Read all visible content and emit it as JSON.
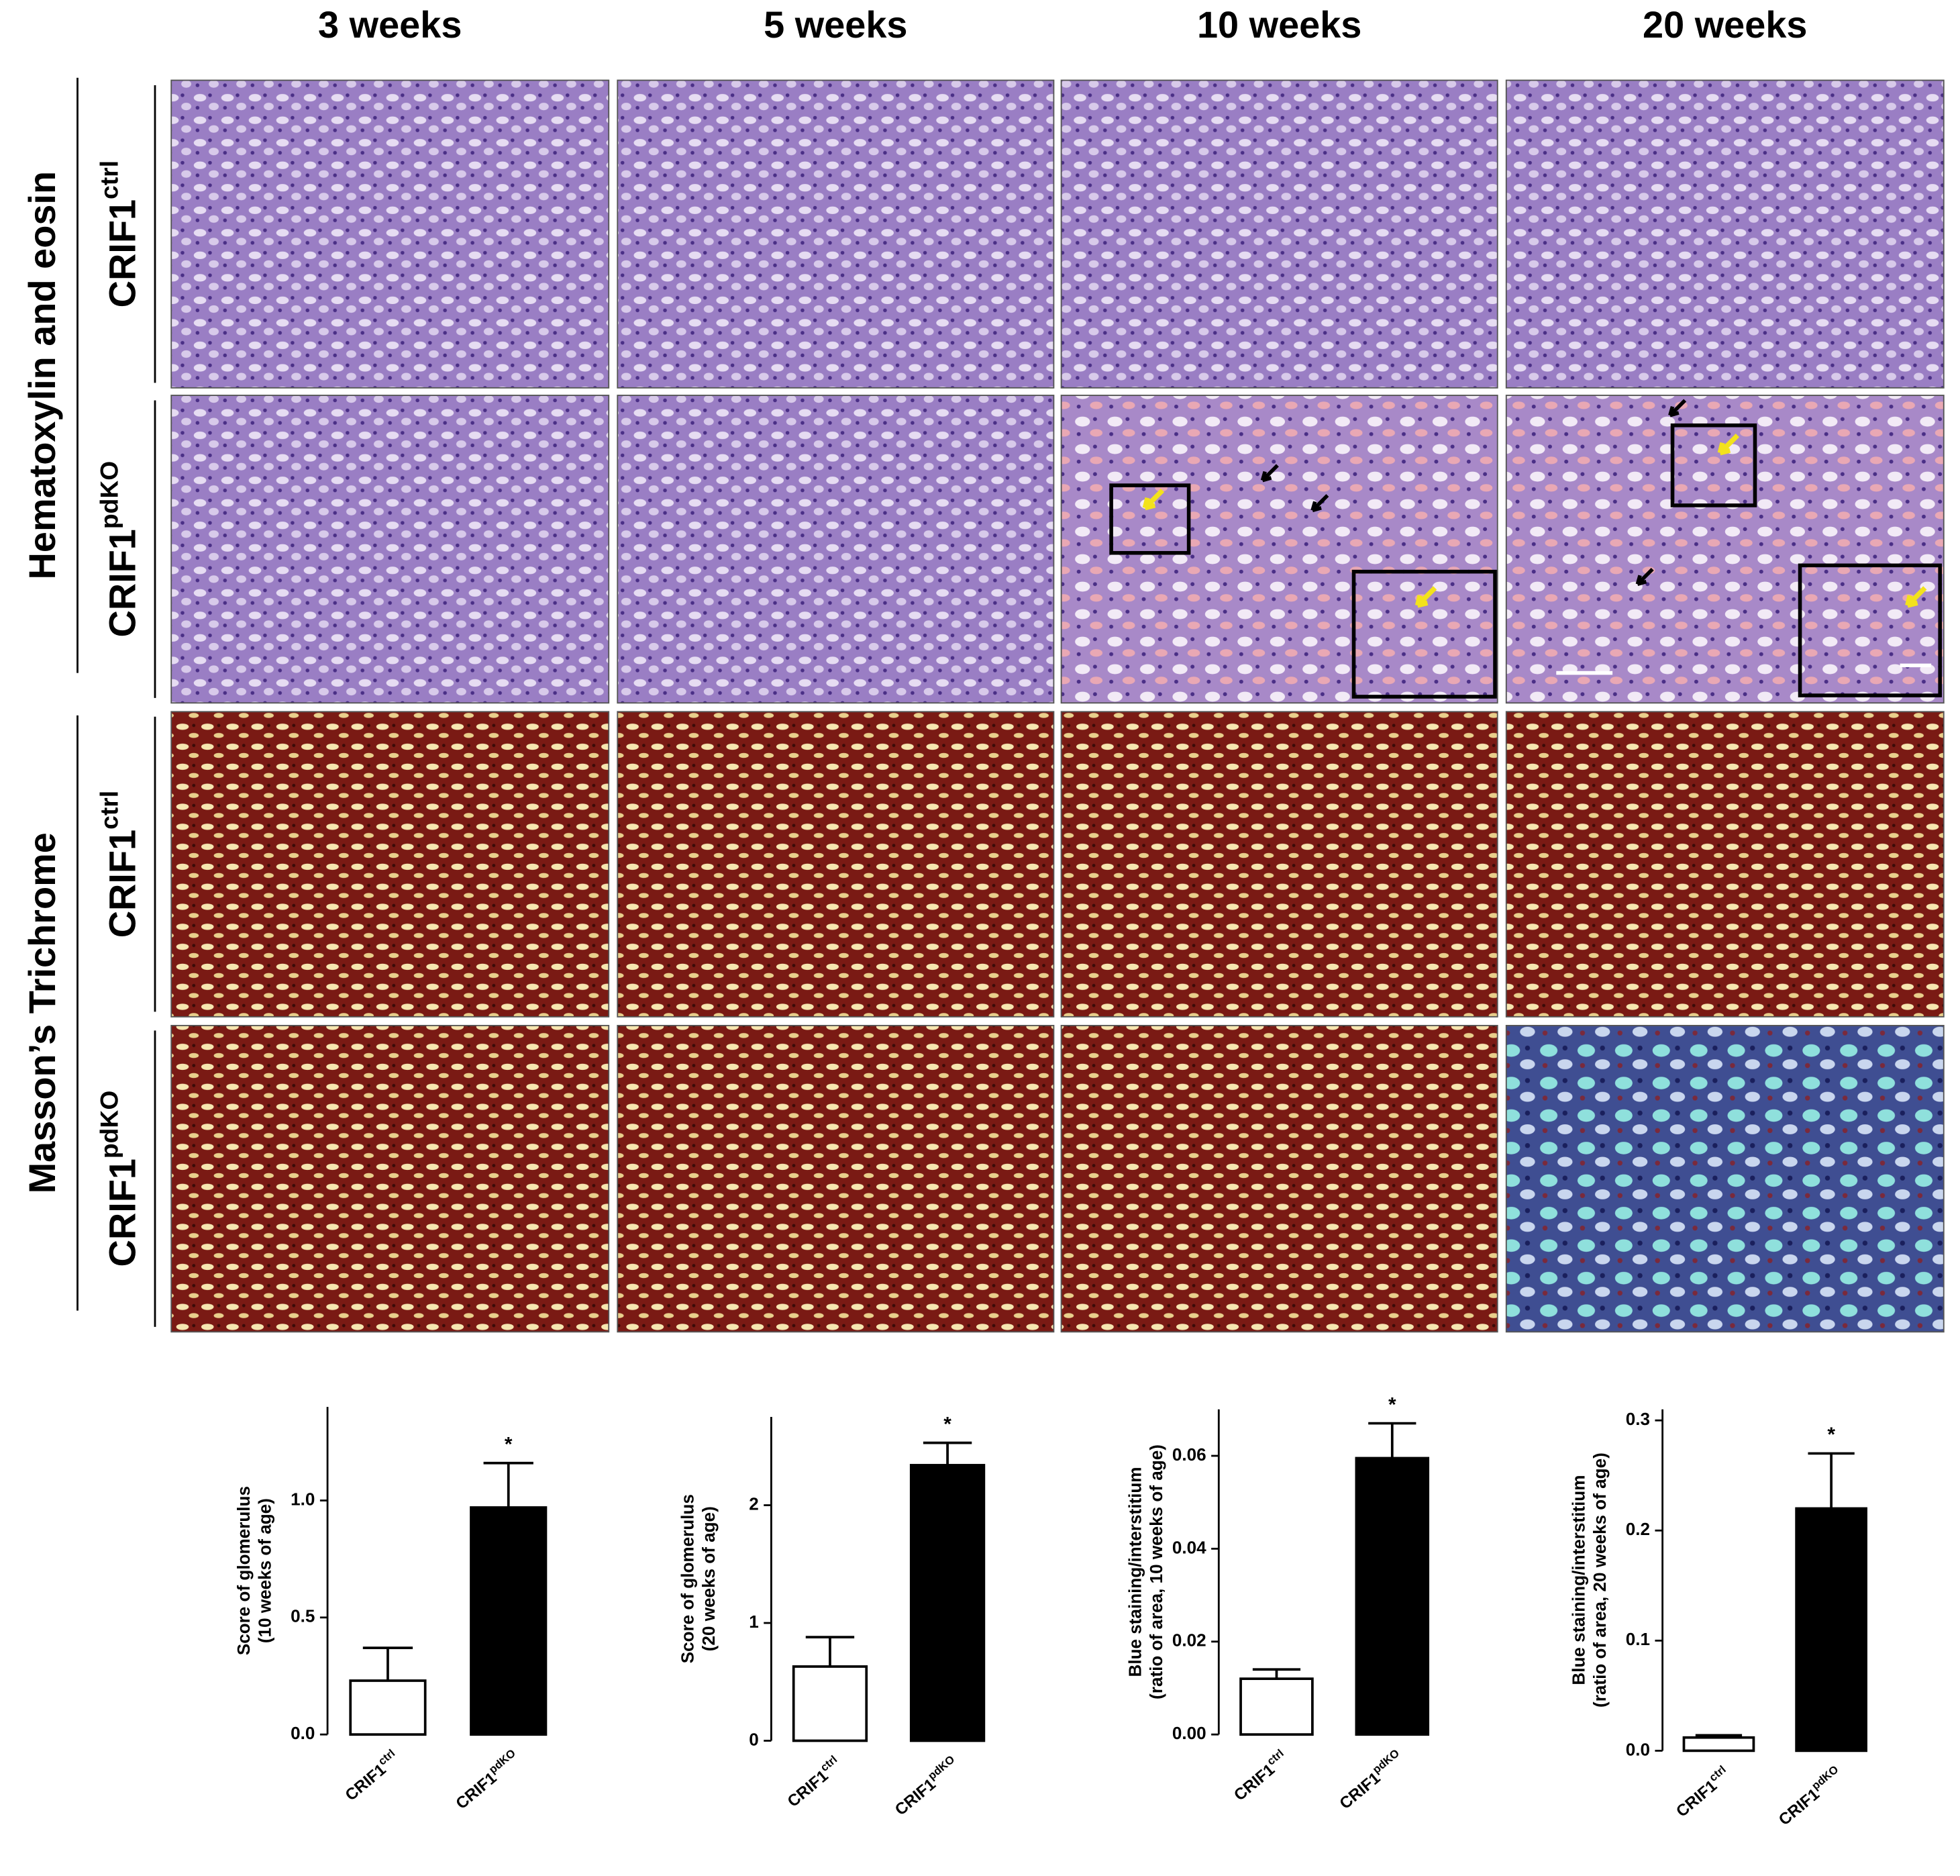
{
  "figure": {
    "columns": [
      "3 weeks",
      "5 weeks",
      "10 weeks",
      "20 weeks"
    ],
    "stains": [
      "Hematoxylin and eosin",
      "Masson’s Trichrome"
    ],
    "genotypes": [
      {
        "label": "CRIF1",
        "sup": "ctrl"
      },
      {
        "label": "CRIF1",
        "sup": "pdKO"
      }
    ]
  },
  "chart_data": [
    {
      "type": "bar",
      "ylabel": [
        "Score of glomerulus",
        "(10 weeks of age)"
      ],
      "categories": [
        {
          "label": "CRIF1",
          "sup": "ctrl"
        },
        {
          "label": "CRIF1",
          "sup": "pdKO"
        }
      ],
      "values": [
        0.23,
        0.97
      ],
      "errors": [
        0.14,
        0.19
      ],
      "colors": [
        "#ffffff",
        "#000000"
      ],
      "edgecolor": "#000000",
      "ylim": [
        0,
        1.4
      ],
      "yticks": [
        {
          "value": 0,
          "label": "0.0"
        },
        {
          "value": 0.5,
          "label": "0.5"
        },
        {
          "value": 1,
          "label": "1.0"
        }
      ],
      "annotation": "*"
    },
    {
      "type": "bar",
      "ylabel": [
        "Score of glomerulus",
        "(20 weeks of age)"
      ],
      "categories": [
        {
          "label": "CRIF1",
          "sup": "ctrl"
        },
        {
          "label": "CRIF1",
          "sup": "pdKO"
        }
      ],
      "values": [
        0.63,
        2.34
      ],
      "errors": [
        0.25,
        0.19
      ],
      "colors": [
        "#ffffff",
        "#000000"
      ],
      "edgecolor": "#000000",
      "ylim": [
        0,
        2.75
      ],
      "yticks": [
        0,
        1,
        2
      ],
      "annotation": "*"
    },
    {
      "type": "bar",
      "ylabel": [
        "Blue staining/interstitium",
        "(ratio of area, 10 weeks of age)"
      ],
      "categories": [
        {
          "label": "CRIF1",
          "sup": "ctrl"
        },
        {
          "label": "CRIF1",
          "sup": "pdKO"
        }
      ],
      "values": [
        0.012,
        0.0595
      ],
      "errors": [
        0.002,
        0.0075
      ],
      "colors": [
        "#ffffff",
        "#000000"
      ],
      "edgecolor": "#000000",
      "ylim": [
        0,
        0.07
      ],
      "yticks": [
        {
          "value": 0,
          "label": "0.00"
        },
        {
          "value": 0.02,
          "label": "0.02"
        },
        {
          "value": 0.04,
          "label": "0.04"
        },
        {
          "value": 0.06,
          "label": "0.06"
        }
      ],
      "annotation": "*"
    },
    {
      "type": "bar",
      "ylabel": [
        "Blue staining/interstitium",
        "(ratio of area, 20 weeks of age)"
      ],
      "categories": [
        {
          "label": "CRIF1",
          "sup": "ctrl"
        },
        {
          "label": "CRIF1",
          "sup": "pdKO"
        }
      ],
      "values": [
        0.012,
        0.22
      ],
      "errors": [
        0.002,
        0.05
      ],
      "colors": [
        "#ffffff",
        "#000000"
      ],
      "edgecolor": "#000000",
      "ylim": [
        0,
        0.31
      ],
      "yticks": [
        {
          "value": 0,
          "label": "0.0"
        },
        {
          "value": 0.1,
          "label": "0.1"
        },
        {
          "value": 0.2,
          "label": "0.2"
        },
        {
          "value": 0.3,
          "label": "0.3"
        }
      ],
      "annotation": "*"
    }
  ]
}
